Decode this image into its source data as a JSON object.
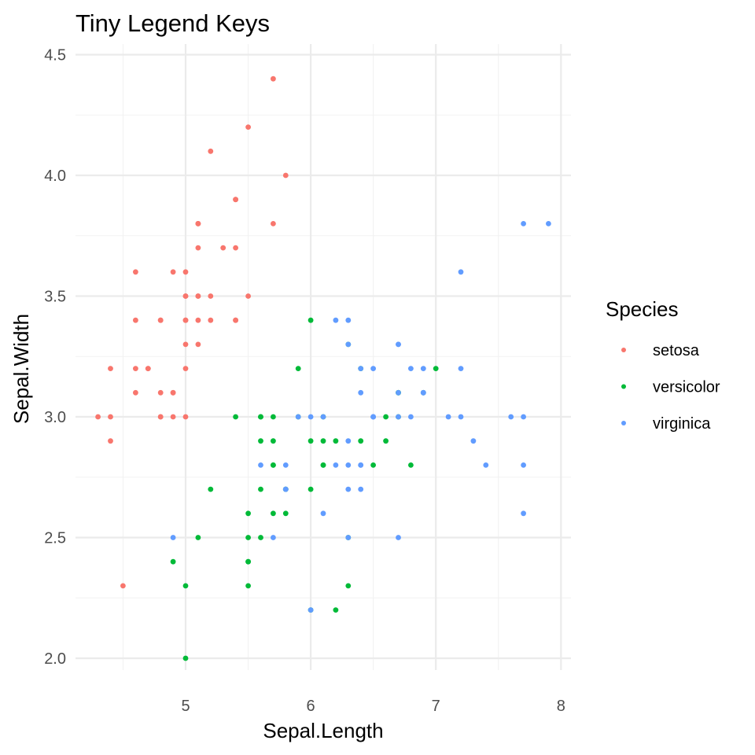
{
  "chart_data": {
    "type": "scatter",
    "title": "Tiny Legend Keys",
    "xlabel": "Sepal.Length",
    "ylabel": "Sepal.Width",
    "xlim": [
      4.3,
      7.9
    ],
    "ylim": [
      2.0,
      4.4
    ],
    "x_ticks": [
      5,
      6,
      7,
      8
    ],
    "y_ticks": [
      2.0,
      2.5,
      3.0,
      3.5,
      4.0,
      4.5
    ],
    "x_tick_labels": [
      "5",
      "6",
      "7",
      "8"
    ],
    "y_tick_labels": [
      "2.0",
      "2.5",
      "3.0",
      "3.5",
      "4.0",
      "4.5"
    ],
    "grid": true,
    "legend": {
      "title": "Species",
      "position": "right"
    },
    "series": [
      {
        "name": "setosa",
        "color": "#F8766D",
        "points": [
          [
            5.1,
            3.5
          ],
          [
            4.9,
            3.0
          ],
          [
            4.7,
            3.2
          ],
          [
            4.6,
            3.1
          ],
          [
            5.0,
            3.6
          ],
          [
            5.4,
            3.9
          ],
          [
            4.6,
            3.4
          ],
          [
            5.0,
            3.4
          ],
          [
            4.4,
            2.9
          ],
          [
            4.9,
            3.1
          ],
          [
            5.4,
            3.7
          ],
          [
            4.8,
            3.4
          ],
          [
            4.8,
            3.0
          ],
          [
            4.3,
            3.0
          ],
          [
            5.8,
            4.0
          ],
          [
            5.7,
            4.4
          ],
          [
            5.4,
            3.9
          ],
          [
            5.1,
            3.5
          ],
          [
            5.7,
            3.8
          ],
          [
            5.1,
            3.8
          ],
          [
            5.4,
            3.4
          ],
          [
            5.1,
            3.7
          ],
          [
            4.6,
            3.6
          ],
          [
            5.1,
            3.3
          ],
          [
            4.8,
            3.4
          ],
          [
            5.0,
            3.0
          ],
          [
            5.0,
            3.4
          ],
          [
            5.2,
            3.5
          ],
          [
            5.2,
            3.4
          ],
          [
            4.7,
            3.2
          ],
          [
            4.8,
            3.1
          ],
          [
            5.4,
            3.4
          ],
          [
            5.2,
            4.1
          ],
          [
            5.5,
            4.2
          ],
          [
            4.9,
            3.1
          ],
          [
            5.0,
            3.2
          ],
          [
            5.5,
            3.5
          ],
          [
            4.9,
            3.6
          ],
          [
            4.4,
            3.0
          ],
          [
            5.1,
            3.4
          ],
          [
            5.0,
            3.5
          ],
          [
            4.5,
            2.3
          ],
          [
            4.4,
            3.2
          ],
          [
            5.0,
            3.5
          ],
          [
            5.1,
            3.8
          ],
          [
            4.8,
            3.0
          ],
          [
            5.1,
            3.8
          ],
          [
            4.6,
            3.2
          ],
          [
            5.3,
            3.7
          ],
          [
            5.0,
            3.3
          ]
        ]
      },
      {
        "name": "versicolor",
        "color": "#00BA38",
        "points": [
          [
            7.0,
            3.2
          ],
          [
            6.4,
            3.2
          ],
          [
            6.9,
            3.1
          ],
          [
            5.5,
            2.3
          ],
          [
            6.5,
            2.8
          ],
          [
            5.7,
            2.8
          ],
          [
            6.3,
            3.3
          ],
          [
            4.9,
            2.4
          ],
          [
            6.6,
            2.9
          ],
          [
            5.2,
            2.7
          ],
          [
            5.0,
            2.0
          ],
          [
            5.9,
            3.0
          ],
          [
            6.0,
            2.2
          ],
          [
            6.1,
            2.9
          ],
          [
            5.6,
            2.9
          ],
          [
            6.7,
            3.1
          ],
          [
            5.6,
            3.0
          ],
          [
            5.8,
            2.7
          ],
          [
            6.2,
            2.2
          ],
          [
            5.6,
            2.5
          ],
          [
            5.9,
            3.2
          ],
          [
            6.1,
            2.8
          ],
          [
            6.3,
            2.5
          ],
          [
            6.1,
            2.8
          ],
          [
            6.4,
            2.9
          ],
          [
            6.6,
            3.0
          ],
          [
            6.8,
            2.8
          ],
          [
            6.7,
            3.0
          ],
          [
            6.0,
            2.9
          ],
          [
            5.7,
            2.6
          ],
          [
            5.5,
            2.4
          ],
          [
            5.5,
            2.4
          ],
          [
            5.8,
            2.7
          ],
          [
            6.0,
            2.7
          ],
          [
            5.4,
            3.0
          ],
          [
            6.0,
            3.4
          ],
          [
            6.7,
            3.1
          ],
          [
            6.3,
            2.3
          ],
          [
            5.6,
            3.0
          ],
          [
            5.5,
            2.5
          ],
          [
            5.5,
            2.6
          ],
          [
            6.1,
            3.0
          ],
          [
            5.8,
            2.6
          ],
          [
            5.0,
            2.3
          ],
          [
            5.6,
            2.7
          ],
          [
            5.7,
            3.0
          ],
          [
            5.7,
            2.9
          ],
          [
            6.2,
            2.9
          ],
          [
            5.1,
            2.5
          ],
          [
            5.7,
            2.8
          ]
        ]
      },
      {
        "name": "virginica",
        "color": "#619CFF",
        "points": [
          [
            6.3,
            3.3
          ],
          [
            5.8,
            2.7
          ],
          [
            7.1,
            3.0
          ],
          [
            6.3,
            2.9
          ],
          [
            6.5,
            3.0
          ],
          [
            7.6,
            3.0
          ],
          [
            4.9,
            2.5
          ],
          [
            7.3,
            2.9
          ],
          [
            6.7,
            2.5
          ],
          [
            7.2,
            3.6
          ],
          [
            6.5,
            3.2
          ],
          [
            6.4,
            2.7
          ],
          [
            6.8,
            3.0
          ],
          [
            5.7,
            2.5
          ],
          [
            5.8,
            2.8
          ],
          [
            6.4,
            3.2
          ],
          [
            6.5,
            3.0
          ],
          [
            7.7,
            3.8
          ],
          [
            7.7,
            2.6
          ],
          [
            6.0,
            2.2
          ],
          [
            6.9,
            3.2
          ],
          [
            5.6,
            2.8
          ],
          [
            7.7,
            2.8
          ],
          [
            6.3,
            2.7
          ],
          [
            6.7,
            3.3
          ],
          [
            7.2,
            3.2
          ],
          [
            6.2,
            2.8
          ],
          [
            6.1,
            3.0
          ],
          [
            6.4,
            2.8
          ],
          [
            7.2,
            3.0
          ],
          [
            7.4,
            2.8
          ],
          [
            7.9,
            3.8
          ],
          [
            6.4,
            2.8
          ],
          [
            6.3,
            2.8
          ],
          [
            6.1,
            2.6
          ],
          [
            7.7,
            3.0
          ],
          [
            6.3,
            3.4
          ],
          [
            6.4,
            3.1
          ],
          [
            6.0,
            3.0
          ],
          [
            6.9,
            3.1
          ],
          [
            6.7,
            3.1
          ],
          [
            6.9,
            3.1
          ],
          [
            5.8,
            2.7
          ],
          [
            6.8,
            3.2
          ],
          [
            6.7,
            3.3
          ],
          [
            6.7,
            3.0
          ],
          [
            6.3,
            2.5
          ],
          [
            6.5,
            3.0
          ],
          [
            6.2,
            3.4
          ],
          [
            5.9,
            3.0
          ]
        ]
      }
    ]
  }
}
